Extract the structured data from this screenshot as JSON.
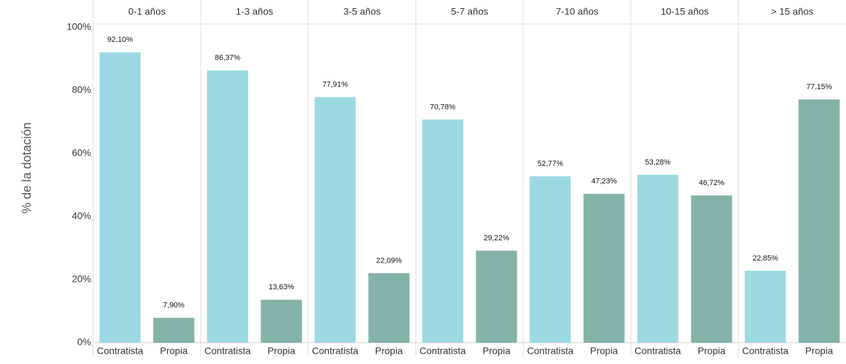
{
  "chart_data": {
    "type": "bar",
    "y_axis_label": "% de la dotación",
    "facets": [
      "0-1 años",
      "1-3 años",
      "3-5 años",
      "5-7 años",
      "7-10 años",
      "10-15 años",
      "> 15 años"
    ],
    "series": [
      {
        "name": "Contratista",
        "color": "#9dd9e2",
        "values": [
          92.1,
          86.37,
          77.91,
          70.78,
          52.77,
          53.28,
          22.85
        ],
        "value_labels": [
          "92,10%",
          "86,37%",
          "77,91%",
          "70,78%",
          "52,77%",
          "53,28%",
          "22,85%"
        ]
      },
      {
        "name": "Propia",
        "color": "#85b3a8",
        "values": [
          7.9,
          13.63,
          22.09,
          29.22,
          47.23,
          46.72,
          77.15
        ],
        "value_labels": [
          "7,90%",
          "13,63%",
          "22,09%",
          "29,22%",
          "47,23%",
          "46,72%",
          "77,15%"
        ]
      }
    ],
    "ylim": [
      0,
      100
    ],
    "yticks": [
      {
        "value": 0,
        "label": "0%"
      },
      {
        "value": 20,
        "label": "20%"
      },
      {
        "value": 40,
        "label": "40%"
      },
      {
        "value": 60,
        "label": "60%"
      },
      {
        "value": 80,
        "label": "80%"
      },
      {
        "value": 100,
        "label": "100%"
      }
    ]
  }
}
